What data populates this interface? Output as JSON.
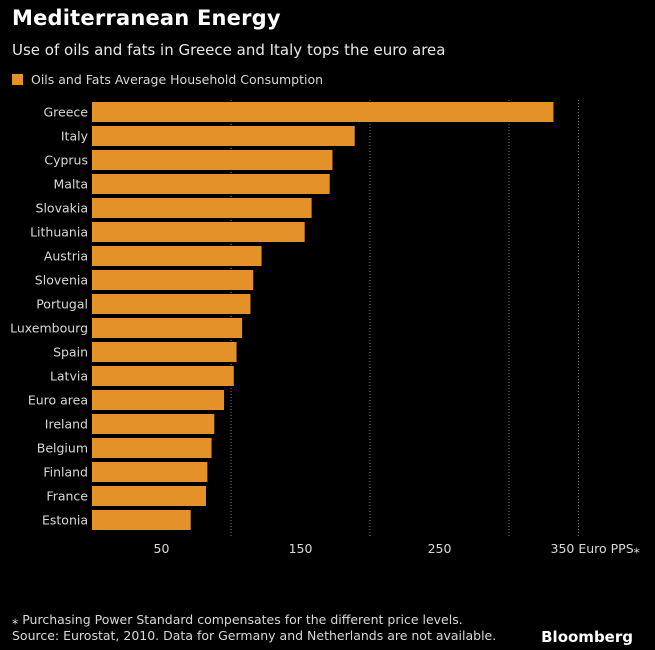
{
  "header": {
    "title": "Mediterranean Energy",
    "subtitle": "Use of oils and fats in Greece and Italy tops the euro area"
  },
  "legend": {
    "label": "Oils and Fats Average Household Consumption"
  },
  "colors": {
    "bar": "#e4912a",
    "background": "#000000",
    "grid": "#777777",
    "text": "#d8d8d8"
  },
  "chart_data": {
    "type": "bar",
    "orientation": "horizontal",
    "categories": [
      "Greece",
      "Italy",
      "Cyprus",
      "Malta",
      "Slovakia",
      "Lithuania",
      "Austria",
      "Slovenia",
      "Portugal",
      "Luxembourg",
      "Spain",
      "Latvia",
      "Euro area",
      "Ireland",
      "Belgium",
      "Finland",
      "France",
      "Estonia"
    ],
    "series": [
      {
        "name": "Oils and Fats Average Household Consumption",
        "values": [
          332,
          189,
          173,
          171,
          158,
          153,
          122,
          116,
          114,
          108,
          104,
          102,
          95,
          88,
          86,
          83,
          82,
          71
        ]
      }
    ],
    "xlim": [
      0,
      380
    ],
    "xticks": [
      50,
      150,
      250,
      350
    ],
    "xtick_labels": [
      "50",
      "150",
      "250",
      "350 Euro PPS⁎"
    ],
    "gridlines": [
      100,
      200,
      300,
      350
    ],
    "grid": true
  },
  "footer": {
    "note": "⁎ Purchasing Power Standard compensates for the different price levels.",
    "source": "Source: Eurostat, 2010. Data for Germany and Netherlands are not available.",
    "brand": "Bloomberg"
  }
}
